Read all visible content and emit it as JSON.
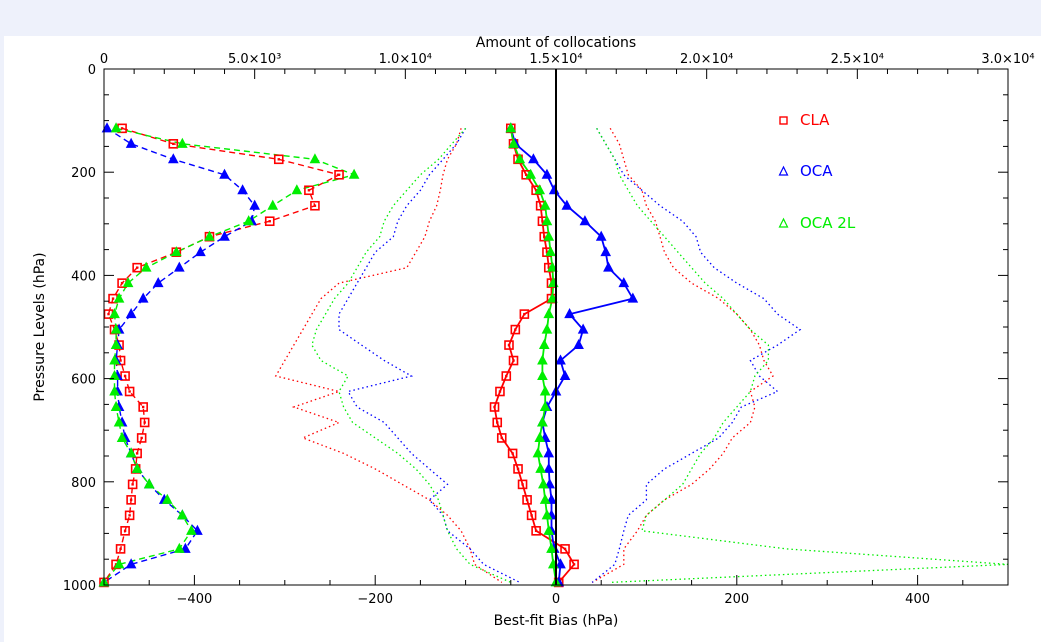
{
  "chart_data": {
    "type": "line",
    "top_axis_title": "Amount of collocations",
    "xlabel": "Best-fit Bias (hPa)",
    "ylabel": "Pressure Levels (hPa)",
    "xlim": [
      -500,
      500
    ],
    "ylim": [
      1000,
      0
    ],
    "top_xlim": [
      0,
      30000
    ],
    "x_ticks": [
      -400,
      -200,
      0,
      200,
      400
    ],
    "y_ticks": [
      0,
      200,
      400,
      600,
      800,
      1000
    ],
    "top_ticks": [
      {
        "value": 0,
        "label": "0"
      },
      {
        "value": 5000,
        "label": "5.0×10³"
      },
      {
        "value": 10000,
        "label": "1.0×10⁴"
      },
      {
        "value": 15000,
        "label": "1.5×10⁴"
      },
      {
        "value": 20000,
        "label": "2.0×10⁴"
      },
      {
        "value": 25000,
        "label": "2.5×10⁴"
      },
      {
        "value": 30000,
        "label": "3.0×10⁴"
      }
    ],
    "legend": [
      {
        "label": "CLA",
        "color": "#ff0000",
        "marker": "square"
      },
      {
        "label": "OCA",
        "color": "#0000ff",
        "marker": "triangle"
      },
      {
        "label": "OCA 2L",
        "color": "#00ee00",
        "marker": "triangle"
      }
    ],
    "pressure_levels": [
      115,
      145,
      175,
      205,
      235,
      265,
      295,
      325,
      355,
      385,
      415,
      445,
      475,
      505,
      535,
      565,
      595,
      625,
      655,
      685,
      715,
      745,
      775,
      805,
      835,
      865,
      895,
      930,
      960,
      995
    ],
    "bias_series": [
      {
        "name": "CLA",
        "color": "#ff0000",
        "mean": [
          -50,
          -47,
          -42,
          -33,
          -22,
          -17,
          -15,
          -13,
          -10,
          -8,
          -5,
          -5,
          -35,
          -45,
          -52,
          -47,
          -55,
          -62,
          -68,
          -65,
          -60,
          -48,
          -42,
          -37,
          -32,
          -27,
          -22,
          10,
          20,
          3
        ],
        "lower": [
          -105,
          -110,
          -120,
          -125,
          -128,
          -132,
          -140,
          -145,
          -155,
          -165,
          -240,
          -260,
          -270,
          -280,
          -290,
          -300,
          -310,
          -240,
          -290,
          -240,
          -280,
          -235,
          -200,
          -170,
          -140,
          -120,
          -105,
          -95,
          -90,
          -60
        ],
        "upper": [
          60,
          70,
          75,
          80,
          95,
          100,
          110,
          115,
          120,
          130,
          150,
          180,
          200,
          215,
          225,
          230,
          240,
          215,
          220,
          215,
          195,
          185,
          170,
          150,
          120,
          100,
          90,
          75,
          75,
          40
        ]
      },
      {
        "name": "OCA",
        "color": "#0000ff",
        "mean": [
          -50,
          -45,
          -25,
          -10,
          -2,
          12,
          32,
          50,
          55,
          58,
          75,
          85,
          15,
          30,
          25,
          5,
          10,
          0,
          -10,
          -15,
          -12,
          -8,
          -8,
          -7,
          -5,
          -5,
          -5,
          -2,
          5,
          3
        ],
        "lower": [
          -100,
          -110,
          -125,
          -140,
          -150,
          -165,
          -175,
          -180,
          -200,
          -210,
          -220,
          -230,
          -240,
          -240,
          -215,
          -190,
          -160,
          -230,
          -220,
          -190,
          -175,
          -160,
          -140,
          -120,
          -140,
          -125,
          -120,
          -95,
          -80,
          -40
        ],
        "upper": [
          45,
          55,
          65,
          75,
          95,
          115,
          140,
          155,
          160,
          175,
          200,
          230,
          245,
          270,
          245,
          215,
          225,
          245,
          205,
          195,
          180,
          150,
          120,
          100,
          100,
          80,
          75,
          70,
          65,
          40
        ]
      },
      {
        "name": "OCA 2L",
        "color": "#00ee00",
        "mean": [
          -50,
          -47,
          -40,
          -28,
          -18,
          -12,
          -10,
          -8,
          -6,
          -4,
          -3,
          -4,
          -8,
          -10,
          -13,
          -15,
          -15,
          -12,
          -12,
          -15,
          -18,
          -20,
          -17,
          -14,
          -12,
          -10,
          -8,
          -5,
          -3,
          0
        ],
        "lower": [
          -100,
          -115,
          -130,
          -150,
          -165,
          -180,
          -190,
          -195,
          -210,
          -220,
          -230,
          -245,
          -255,
          -265,
          -270,
          -260,
          -230,
          -240,
          -235,
          -225,
          -200,
          -175,
          -155,
          -140,
          -130,
          -125,
          -120,
          -110,
          -95,
          -50
        ],
        "upper": [
          45,
          55,
          65,
          70,
          80,
          90,
          105,
          120,
          135,
          150,
          165,
          185,
          200,
          215,
          235,
          235,
          220,
          215,
          200,
          185,
          175,
          160,
          150,
          140,
          120,
          100,
          95,
          255,
          500,
          60
        ]
      }
    ],
    "count_series": [
      {
        "name": "CLA",
        "color": "#ff0000",
        "marker": "square",
        "levels": [
          115,
          145,
          175,
          205,
          235,
          265,
          295,
          325,
          355,
          385,
          415,
          445,
          475,
          505,
          535,
          565,
          595,
          625,
          655,
          685,
          715,
          745,
          775,
          805,
          835,
          865,
          895,
          930,
          960,
          995
        ],
        "values": [
          600,
          2300,
          5800,
          7800,
          6800,
          7000,
          5500,
          3500,
          2400,
          1100,
          600,
          300,
          150,
          350,
          500,
          550,
          700,
          850,
          1300,
          1350,
          1250,
          1100,
          1050,
          950,
          900,
          850,
          700,
          550,
          400,
          0
        ]
      },
      {
        "name": "OCA",
        "color": "#0000ff",
        "marker": "triangle",
        "levels": [
          115,
          145,
          175,
          205,
          235,
          265,
          295,
          325,
          355,
          385,
          415,
          445,
          475,
          505,
          535,
          565,
          595,
          625,
          655,
          685,
          715,
          745,
          775,
          805,
          835,
          865,
          895,
          930,
          960,
          995
        ],
        "values": [
          100,
          900,
          2300,
          4000,
          4600,
          5000,
          4900,
          4000,
          3200,
          2500,
          1800,
          1300,
          900,
          500,
          450,
          400,
          450,
          450,
          500,
          600,
          700,
          900,
          1100,
          1500,
          2000,
          2600,
          3100,
          2700,
          900,
          0
        ]
      },
      {
        "name": "OCA 2L",
        "color": "#00ee00",
        "marker": "triangle",
        "levels": [
          115,
          145,
          175,
          205,
          235,
          265,
          295,
          325,
          355,
          385,
          415,
          445,
          475,
          505,
          535,
          565,
          595,
          625,
          655,
          685,
          715,
          745,
          775,
          805,
          835,
          865,
          895,
          930,
          960,
          995
        ],
        "values": [
          400,
          2600,
          7000,
          8300,
          6400,
          5600,
          4800,
          3500,
          2400,
          1400,
          800,
          500,
          350,
          400,
          400,
          350,
          350,
          350,
          400,
          500,
          600,
          900,
          1100,
          1500,
          2100,
          2600,
          2900,
          2500,
          500,
          0
        ]
      }
    ]
  }
}
